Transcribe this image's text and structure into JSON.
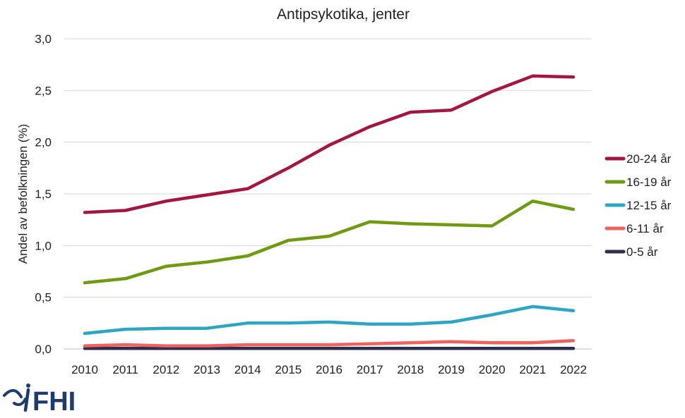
{
  "chart_data": {
    "type": "line",
    "title": "Antipsykotika, jenter",
    "xlabel": "",
    "ylabel": "Andel av befolkningen (%)",
    "x": [
      "2010",
      "2011",
      "2012",
      "2013",
      "2014",
      "2015",
      "2016",
      "2017",
      "2018",
      "2019",
      "2020",
      "2021",
      "2022"
    ],
    "ylim": [
      0,
      3.0
    ],
    "yticks": [
      "0,0",
      "0,5",
      "1,0",
      "1,5",
      "2,0",
      "2,5",
      "3,0"
    ],
    "ytick_values": [
      0,
      0.5,
      1.0,
      1.5,
      2.0,
      2.5,
      3.0
    ],
    "grid": true,
    "legend_position": "right",
    "series": [
      {
        "name": "20-24 år",
        "color": "#a3163f",
        "values": [
          1.32,
          1.34,
          1.43,
          1.49,
          1.55,
          1.75,
          1.97,
          2.15,
          2.29,
          2.31,
          2.49,
          2.64,
          2.63
        ]
      },
      {
        "name": "16-19 år",
        "color": "#6f9a12",
        "values": [
          0.64,
          0.68,
          0.8,
          0.84,
          0.9,
          1.05,
          1.09,
          1.23,
          1.21,
          1.2,
          1.19,
          1.43,
          1.35
        ]
      },
      {
        "name": "12-15 år",
        "color": "#2ea5c2",
        "values": [
          0.15,
          0.19,
          0.2,
          0.2,
          0.25,
          0.25,
          0.26,
          0.24,
          0.24,
          0.26,
          0.33,
          0.41,
          0.37
        ]
      },
      {
        "name": "6-11 år",
        "color": "#f0625e",
        "values": [
          0.03,
          0.04,
          0.03,
          0.03,
          0.04,
          0.04,
          0.04,
          0.05,
          0.06,
          0.07,
          0.06,
          0.06,
          0.08
        ]
      },
      {
        "name": "0-5 år",
        "color": "#2d2d4d",
        "values": [
          0.005,
          0.005,
          0.005,
          0.005,
          0.005,
          0.005,
          0.005,
          0.005,
          0.005,
          0.005,
          0.005,
          0.005,
          0.005
        ]
      }
    ]
  },
  "logo": {
    "text": "FHI",
    "color": "#1f3b6e"
  }
}
